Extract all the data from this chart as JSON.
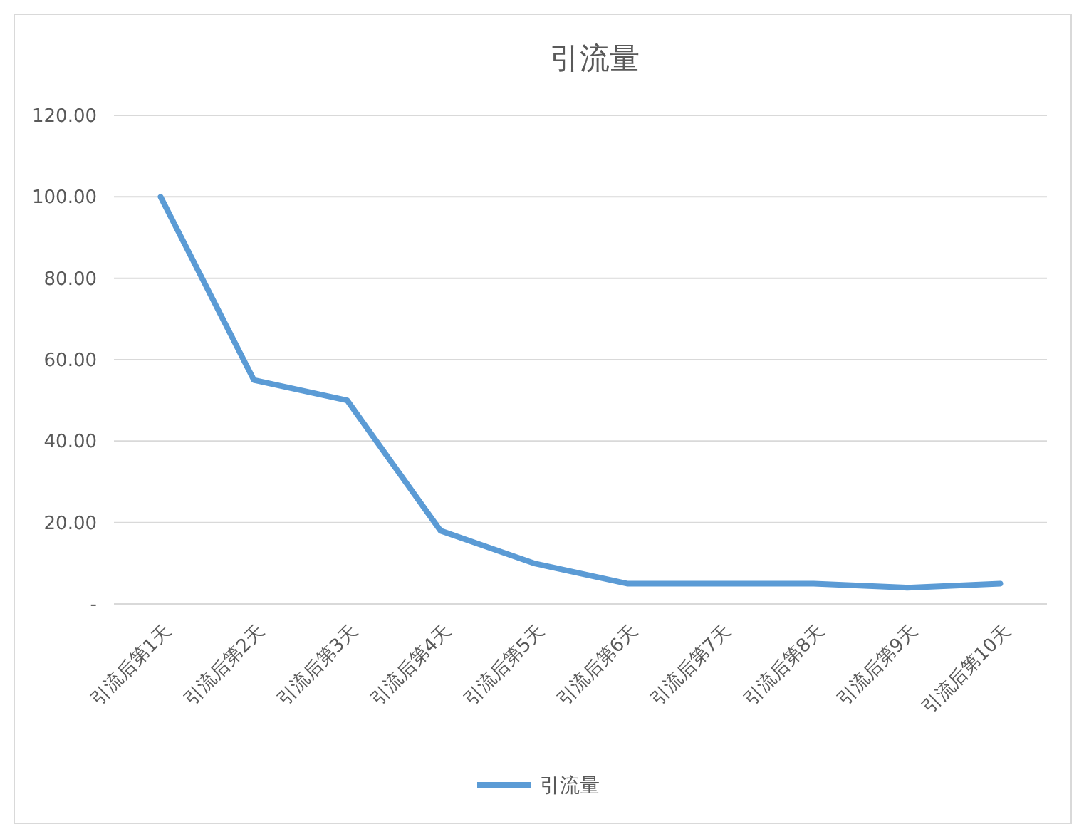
{
  "chart_data": {
    "type": "line",
    "title": "引流量",
    "categories": [
      "引流后第1天",
      "引流后第2天",
      "引流后第3天",
      "引流后第4天",
      "引流后第5天",
      "引流后第6天",
      "引流后第7天",
      "引流后第8天",
      "引流后第9天",
      "引流后第10天"
    ],
    "series": [
      {
        "name": "引流量",
        "color": "#5b9bd5",
        "values": [
          100,
          55,
          50,
          18,
          10,
          5,
          5,
          5,
          4,
          5
        ]
      }
    ],
    "ylim": [
      0,
      120
    ],
    "yticks": [
      {
        "value": 0,
        "label": "-"
      },
      {
        "value": 20,
        "label": "20.00"
      },
      {
        "value": 40,
        "label": "40.00"
      },
      {
        "value": 60,
        "label": "60.00"
      },
      {
        "value": 80,
        "label": "80.00"
      },
      {
        "value": 100,
        "label": "100.00"
      },
      {
        "value": 120,
        "label": "120.00"
      }
    ],
    "grid": "y",
    "legend": "bottom",
    "marker": "none",
    "line_style": "solid"
  }
}
